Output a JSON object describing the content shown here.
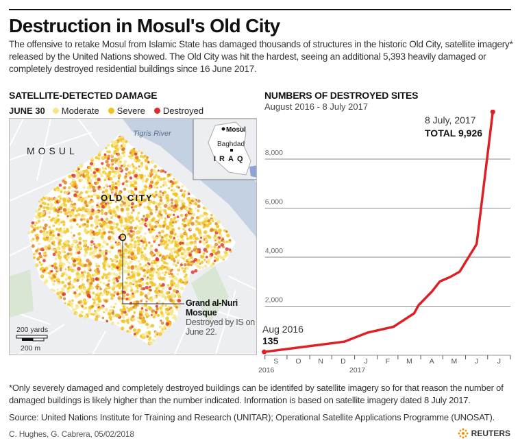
{
  "header": {
    "title": "Destruction in Mosul's Old City",
    "subtitle": "The offensive to retake Mosul from Islamic State has damaged thousands of structures in the historic Old City, satellite imagery* released by the United Nations showed. The Old City was hit the hardest, seeing an additional 5,393 heavily damaged or completely destroyed residential buildings since 16 June 2017."
  },
  "map": {
    "heading": "SATELLITE-DETECTED DAMAGE",
    "legend_date": "JUNE 30",
    "legend": [
      {
        "label": "Moderate",
        "color": "#f6e68a"
      },
      {
        "label": "Severe",
        "color": "#f0c21a"
      },
      {
        "label": "Destroyed",
        "color": "#dd2a2f"
      }
    ],
    "labels": {
      "city": "MOSUL",
      "old_city": "OLD CITY",
      "river": "Tigris River",
      "inset_mosul": "Mosul",
      "inset_baghdad": "Baghdad",
      "inset_country": "IRAQ",
      "mosque_name": "Grand al-Nuri Mosque",
      "mosque_note": "Destroyed by IS on June 22.",
      "scale_yards": "200 yards",
      "scale_m": "200 m"
    }
  },
  "chart_data": {
    "type": "line",
    "title": "NUMBERS OF DESTROYED SITES",
    "subtitle": "August 2016 - 8 July 2017",
    "x": [
      "2016-08-31",
      "2016-12-18",
      "2017-01-19",
      "2017-02-23",
      "2017-03-23",
      "2017-03-29",
      "2017-04-16",
      "2017-04-27",
      "2017-05-11",
      "2017-05-24",
      "2017-06-16",
      "2017-07-08"
    ],
    "values": [
      135,
      555,
      925,
      1160,
      1710,
      2040,
      2590,
      3010,
      3190,
      3410,
      4533,
      9926
    ],
    "ylim": [
      0,
      10000
    ],
    "yticks": [
      2000,
      4000,
      6000,
      8000
    ],
    "ytick_labels": [
      "2,000",
      "4,000",
      "6,000",
      "8,000"
    ],
    "xtick_labels": [
      "S",
      "O",
      "N",
      "D",
      "J",
      "F",
      "M",
      "A",
      "M",
      "J",
      "J"
    ],
    "year_labels": [
      "2016",
      "2017"
    ],
    "grid": true,
    "line_color": "#dd1f26",
    "annotations": {
      "start_date": "Aug 2016",
      "start_value": "135",
      "end_date": "8 July, 2017",
      "end_value": "TOTAL 9,926"
    }
  },
  "footer": {
    "note": "*Only severely damaged and completely destroyed buildings can be identifed by satellite imagery so for that reason the number of damaged buildings is likely higher than the number indicated. Information is based on satellite imagery dated 8 July 2017.",
    "source": "Source: United Nations Institute for Training and Research (UNITAR); Operational Satellite Applications Programme (UNOSAT).",
    "credit": "C. Hughes, G. Cabrera, 05/02/2018",
    "brand": "REUTERS"
  }
}
